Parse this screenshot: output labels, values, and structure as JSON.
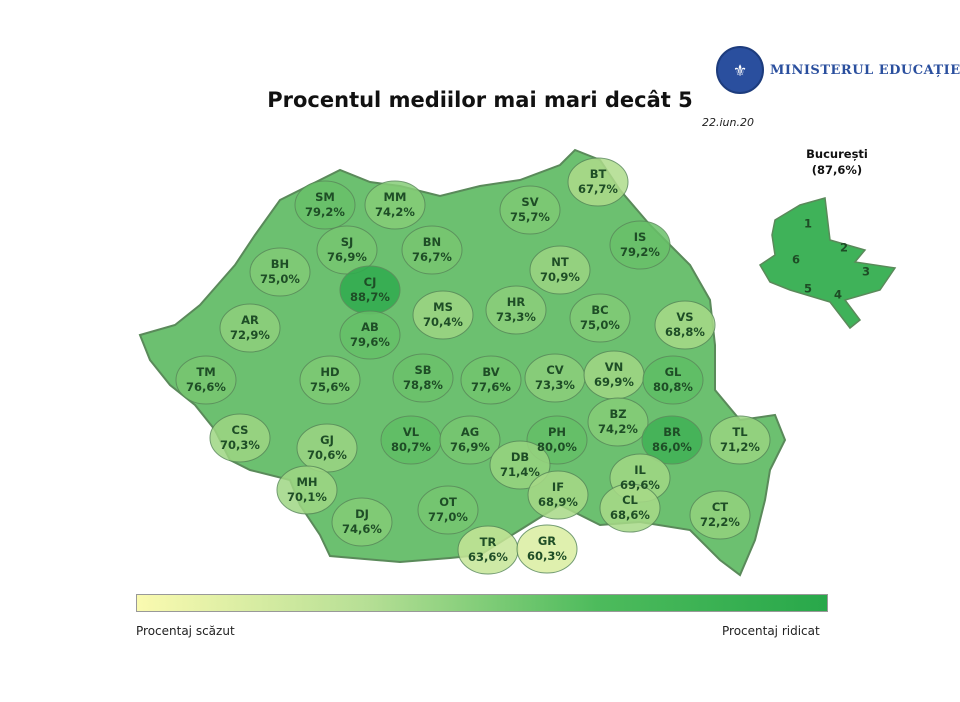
{
  "header": {
    "title": "Procentul mediilor mai mari decât 5",
    "date": "22.iun.20",
    "logo_text": "MINISTERUL EDUCAȚIEI ȘI"
  },
  "colors": {
    "low": "#fafab0",
    "high": "#28a84a",
    "border": "#5a8a5a"
  },
  "counties": [
    {
      "code": "SM",
      "value": "79,2%"
    },
    {
      "code": "MM",
      "value": "74,2%"
    },
    {
      "code": "SV",
      "value": "75,7%"
    },
    {
      "code": "BT",
      "value": "67,7%"
    },
    {
      "code": "SJ",
      "value": "76,9%"
    },
    {
      "code": "BN",
      "value": "76,7%"
    },
    {
      "code": "IS",
      "value": "79,2%"
    },
    {
      "code": "BH",
      "value": "75,0%"
    },
    {
      "code": "CJ",
      "value": "88,7%"
    },
    {
      "code": "NT",
      "value": "70,9%"
    },
    {
      "code": "MS",
      "value": "70,4%"
    },
    {
      "code": "HR",
      "value": "73,3%"
    },
    {
      "code": "BC",
      "value": "75,0%"
    },
    {
      "code": "VS",
      "value": "68,8%"
    },
    {
      "code": "AR",
      "value": "72,9%"
    },
    {
      "code": "AB",
      "value": "79,6%"
    },
    {
      "code": "TM",
      "value": "76,6%"
    },
    {
      "code": "HD",
      "value": "75,6%"
    },
    {
      "code": "SB",
      "value": "78,8%"
    },
    {
      "code": "BV",
      "value": "77,6%"
    },
    {
      "code": "CV",
      "value": "73,3%"
    },
    {
      "code": "VN",
      "value": "69,9%"
    },
    {
      "code": "GL",
      "value": "80,8%"
    },
    {
      "code": "CS",
      "value": "70,3%"
    },
    {
      "code": "GJ",
      "value": "70,6%"
    },
    {
      "code": "VL",
      "value": "80,7%"
    },
    {
      "code": "AG",
      "value": "76,9%"
    },
    {
      "code": "PH",
      "value": "80,0%"
    },
    {
      "code": "BZ",
      "value": "74,2%"
    },
    {
      "code": "BR",
      "value": "86,0%"
    },
    {
      "code": "TL",
      "value": "71,2%"
    },
    {
      "code": "DB",
      "value": "71,4%"
    },
    {
      "code": "MH",
      "value": "70,1%"
    },
    {
      "code": "IL",
      "value": "69,6%"
    },
    {
      "code": "IF",
      "value": "68,9%"
    },
    {
      "code": "DJ",
      "value": "74,6%"
    },
    {
      "code": "OT",
      "value": "77,0%"
    },
    {
      "code": "TR",
      "value": "63,6%"
    },
    {
      "code": "GR",
      "value": "60,3%"
    },
    {
      "code": "CL",
      "value": "68,6%"
    },
    {
      "code": "CT",
      "value": "72,2%"
    }
  ],
  "bucuresti": {
    "name": "București",
    "value": "(87,6%)",
    "sectors": [
      "1",
      "2",
      "3",
      "4",
      "5",
      "6"
    ]
  },
  "legend": {
    "low_label": "Procentaj scăzut",
    "high_label": "Procentaj ridicat"
  }
}
